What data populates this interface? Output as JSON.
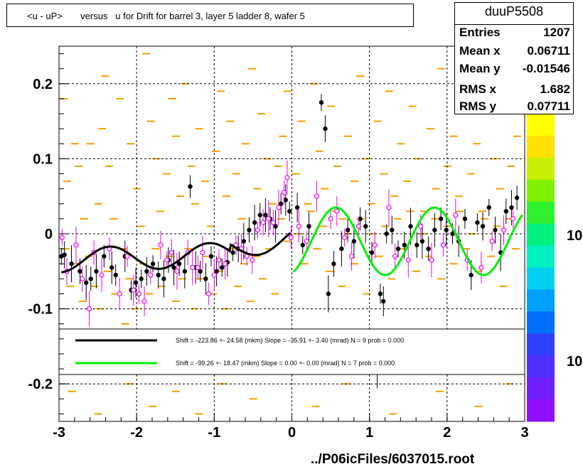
{
  "title": "<u - uP>       versus   u for Drift for barrel 3, layer 5 ladder 8, wafer 5",
  "stats": {
    "name": "duuP5508",
    "rows": [
      {
        "label": "Entries",
        "value": "1207"
      },
      {
        "label": "Mean x",
        "value": "0.06711"
      },
      {
        "label": "Mean y",
        "value": "-0.01546"
      },
      {
        "label": "RMS x",
        "value": "1.682"
      },
      {
        "label": "RMS y",
        "value": "0.07711"
      }
    ]
  },
  "footer": "../P06icFiles/6037015.root",
  "zaxis_labels": [
    "10",
    "10"
  ],
  "legend": [
    {
      "color": "#000000",
      "text": "Shift =  -223.86 +- 24.58 (mkm) Slope =   -35.91 +- 3.40 (mrad)  N = 9 prob = 0.000"
    },
    {
      "color": "#00ee00",
      "text": "Shift =   -99.26 +- 18.47 (mkm) Slope =     0.00 +- 0.00 (mrad)  N = 7 prob = 0.000"
    }
  ],
  "chart_data": {
    "type": "scatter",
    "xlim": [
      -3,
      3
    ],
    "ylim": [
      -0.25,
      0.25
    ],
    "x_ticks": [
      "-3",
      "-2",
      "-1",
      "0",
      "1",
      "2",
      "3"
    ],
    "y_ticks": [
      "0.2",
      "0.1",
      "0",
      "-0.1",
      "-0.2"
    ],
    "y_tick_values": [
      0.2,
      0.1,
      0,
      -0.1,
      -0.2
    ],
    "grid": true,
    "colors": {
      "profile": "#000000",
      "profile_open": "#ee00ee",
      "heat": "#f0a000",
      "fit1": "#000000",
      "fit2": "#00ee00"
    },
    "series": [
      {
        "marker": "filled-circle",
        "x": [
          -2.97,
          -2.93,
          -2.84,
          -2.73,
          -2.65,
          -2.59,
          -2.52,
          -2.42,
          -2.32,
          -2.27,
          -2.15,
          -2.07,
          -2.01,
          -1.94,
          -1.87,
          -1.79,
          -1.72,
          -1.65,
          -1.59,
          -1.52,
          -1.45,
          -1.38,
          -1.31,
          -1.24,
          -1.18,
          -1.11,
          -1.04,
          -0.97,
          -0.9,
          -0.83,
          -0.76,
          -0.69,
          -0.62,
          -0.55,
          -0.48,
          -0.41,
          -0.34,
          -0.28,
          -0.21,
          -0.14,
          -0.08,
          -0.03,
          0.07,
          0.14,
          0.22,
          0.38,
          0.43,
          0.47,
          0.54,
          0.64,
          0.72,
          0.8,
          0.88,
          0.95,
          1.03,
          1.1,
          1.14,
          1.18,
          1.22,
          1.29,
          1.37,
          1.45,
          1.53,
          1.61,
          1.68,
          1.76,
          1.84,
          1.92,
          1.99,
          2.07,
          2.15,
          2.23,
          2.31,
          2.39,
          2.46,
          2.54,
          2.62,
          2.69,
          2.76,
          2.83,
          2.9
        ],
        "y": [
          -0.03,
          -0.028,
          -0.04,
          -0.05,
          -0.065,
          -0.06,
          -0.05,
          -0.03,
          -0.045,
          -0.055,
          -0.03,
          -0.075,
          -0.065,
          -0.06,
          -0.05,
          -0.04,
          -0.055,
          -0.06,
          -0.035,
          -0.045,
          -0.04,
          -0.05,
          0.063,
          -0.045,
          -0.05,
          -0.06,
          -0.03,
          -0.05,
          -0.045,
          -0.038,
          -0.025,
          -0.02,
          -0.01,
          0.005,
          0.015,
          0.025,
          0.025,
          0.02,
          0.01,
          0.04,
          0.045,
          0.03,
          0.035,
          -0.015,
          0.01,
          0.175,
          0.14,
          -0.08,
          -0.04,
          -0.02,
          0.005,
          -0.01,
          0.02,
          0.01,
          -0.025,
          -0.185,
          -0.08,
          -0.09,
          0,
          0.005,
          -0.02,
          -0.015,
          0.01,
          -0.015,
          -0.01,
          -0.02,
          0.005,
          0.02,
          0.005,
          0,
          -0.01,
          0.02,
          -0.055,
          0.015,
          0.01,
          0.035,
          0.005,
          -0.025,
          0.03,
          0.035,
          0.048
        ]
      },
      {
        "marker": "open-circle",
        "x": [
          -2.96,
          -2.9,
          -2.78,
          -2.7,
          -2.61,
          -2.55,
          -2.45,
          -2.35,
          -2.22,
          -2.12,
          -2.04,
          -1.97,
          -1.9,
          -1.82,
          -1.69,
          -1.61,
          -1.55,
          -1.48,
          -1.34,
          -1.28,
          -1.21,
          -1.15,
          -1.07,
          -1.0,
          -0.94,
          -0.86,
          -0.72,
          -0.65,
          -0.58,
          -0.51,
          -0.44,
          -0.37,
          -0.3,
          -0.24,
          -0.17,
          -0.1,
          -0.06,
          -0.01,
          0.09,
          0.19,
          0.32,
          0.5,
          0.58,
          0.68,
          0.77,
          0.86,
          1.07,
          1.25,
          1.33,
          1.5,
          1.66,
          1.8,
          1.95,
          2.11,
          2.26,
          2.44,
          2.58,
          2.73,
          2.85
        ],
        "y": [
          -0.005,
          -0.05,
          -0.015,
          -0.06,
          -0.1,
          -0.025,
          -0.055,
          -0.02,
          -0.08,
          -0.03,
          -0.075,
          -0.08,
          -0.09,
          -0.055,
          -0.015,
          -0.035,
          -0.025,
          -0.05,
          -0.025,
          -0.045,
          -0.045,
          -0.025,
          -0.08,
          -0.055,
          -0.035,
          -0.04,
          -0.015,
          -0.02,
          -0.03,
          -0.035,
          0.005,
          0.015,
          0.02,
          0.015,
          0.035,
          0.055,
          0.075,
          -0.005,
          0.01,
          -0.01,
          0.05,
          0.02,
          0.03,
          -0.005,
          -0.03,
          0.01,
          -0.015,
          0.035,
          -0.03,
          -0.035,
          0.01,
          -0.035,
          -0.015,
          0.025,
          -0.035,
          -0.045,
          -0.01,
          0.005,
          0.02
        ]
      }
    ],
    "heat_cells": [
      [
        -2.94,
        0.18
      ],
      [
        -2.9,
        0.07
      ],
      [
        -2.8,
        0.12
      ],
      [
        -2.75,
        0.09
      ],
      [
        -2.68,
        0.02
      ],
      [
        -2.6,
        0.12
      ],
      [
        -2.5,
        0.04
      ],
      [
        -2.45,
        0.14
      ],
      [
        -2.41,
        0.21
      ],
      [
        -2.36,
        0.09
      ],
      [
        -2.3,
        0.02
      ],
      [
        -2.22,
        0.18
      ],
      [
        -2.15,
        -0.12
      ],
      [
        -2.08,
        0.12
      ],
      [
        -2.0,
        0.06
      ],
      [
        -1.95,
        0.01
      ],
      [
        -1.88,
        0.24
      ],
      [
        -1.82,
        0.15
      ],
      [
        -1.75,
        0.1
      ],
      [
        -1.7,
        0.03
      ],
      [
        -1.62,
        0.08
      ],
      [
        -1.55,
        0.18
      ],
      [
        -1.5,
        0.13
      ],
      [
        -1.44,
        0.05
      ],
      [
        -1.38,
        0.2
      ],
      [
        -1.3,
        0.09
      ],
      [
        -1.25,
        0.04
      ],
      [
        -1.2,
        0.14
      ],
      [
        -1.12,
        0.07
      ],
      [
        -1.05,
        0.01
      ],
      [
        -0.98,
        0.11
      ],
      [
        -0.92,
        0.19
      ],
      [
        -0.85,
        0.05
      ],
      [
        -0.8,
        0.15
      ],
      [
        -0.72,
        0.08
      ],
      [
        -0.65,
        0.02
      ],
      [
        -0.6,
        0.12
      ],
      [
        -0.52,
        0.22
      ],
      [
        -0.45,
        0.06
      ],
      [
        -0.4,
        0.16
      ],
      [
        -0.32,
        0.1
      ],
      [
        -0.25,
        0.04
      ],
      [
        -0.18,
        0.09
      ],
      [
        -0.12,
        0.13
      ],
      [
        -0.06,
        0.19
      ],
      [
        0.05,
        0.08
      ],
      [
        0.12,
        0.15
      ],
      [
        0.2,
        0.04
      ],
      [
        0.28,
        0.2
      ],
      [
        0.35,
        0.11
      ],
      [
        0.42,
        0.06
      ],
      [
        0.5,
        0.17
      ],
      [
        0.58,
        0.09
      ],
      [
        0.65,
        0.02
      ],
      [
        0.72,
        0.13
      ],
      [
        0.8,
        0.07
      ],
      [
        0.88,
        0.21
      ],
      [
        0.95,
        0.1
      ],
      [
        1.02,
        0.04
      ],
      [
        1.1,
        0.15
      ],
      [
        1.18,
        0.08
      ],
      [
        1.25,
        0.19
      ],
      [
        1.32,
        0.05
      ],
      [
        1.4,
        0.12
      ],
      [
        1.48,
        0.07
      ],
      [
        1.55,
        0.17
      ],
      [
        1.62,
        0.1
      ],
      [
        1.7,
        0.03
      ],
      [
        1.78,
        0.14
      ],
      [
        1.85,
        0.06
      ],
      [
        1.92,
        0.22
      ],
      [
        2.0,
        0.09
      ],
      [
        2.08,
        0.13
      ],
      [
        2.15,
        0.05
      ],
      [
        2.22,
        0.18
      ],
      [
        2.3,
        0.08
      ],
      [
        2.38,
        0.12
      ],
      [
        2.45,
        0.03
      ],
      [
        2.52,
        0.16
      ],
      [
        2.6,
        0.1
      ],
      [
        2.68,
        0.06
      ],
      [
        2.75,
        0.2
      ],
      [
        2.82,
        0.09
      ],
      [
        2.9,
        0.13
      ],
      [
        -2.92,
        -0.02
      ],
      [
        -2.86,
        -0.07
      ],
      [
        -2.78,
        -0.04
      ],
      [
        -2.7,
        -0.09
      ],
      [
        -2.62,
        -0.03
      ],
      [
        -2.55,
        -0.07
      ],
      [
        -2.48,
        -0.1
      ],
      [
        -2.38,
        -0.05
      ],
      [
        -2.28,
        -0.08
      ],
      [
        -2.18,
        -0.02
      ],
      [
        -2.1,
        -0.06
      ],
      [
        -2.02,
        -0.1
      ],
      [
        -1.92,
        -0.04
      ],
      [
        -1.84,
        -0.08
      ],
      [
        -1.76,
        -0.02
      ],
      [
        -1.68,
        -0.07
      ],
      [
        -1.58,
        -0.03
      ],
      [
        -1.5,
        -0.09
      ],
      [
        -1.42,
        -0.06
      ],
      [
        -1.34,
        -0.02
      ],
      [
        -1.26,
        -0.1
      ],
      [
        -1.18,
        -0.06
      ],
      [
        -1.1,
        -0.03
      ],
      [
        -1.02,
        -0.08
      ],
      [
        -0.94,
        -0.05
      ],
      [
        -0.86,
        -0.1
      ],
      [
        -0.78,
        -0.02
      ],
      [
        -0.7,
        -0.07
      ],
      [
        -0.62,
        -0.04
      ],
      [
        -0.54,
        -0.09
      ],
      [
        -0.46,
        -0.03
      ],
      [
        -0.38,
        -0.06
      ],
      [
        -0.3,
        -0.02
      ],
      [
        -0.22,
        -0.08
      ],
      [
        -0.14,
        0.02
      ],
      [
        -0.06,
        -0.01
      ],
      [
        0.08,
        0.0
      ],
      [
        0.16,
        -0.04
      ],
      [
        0.24,
        0.03
      ],
      [
        0.32,
        -0.02
      ],
      [
        0.4,
        0.01
      ],
      [
        0.48,
        -0.05
      ],
      [
        0.56,
        0.03
      ],
      [
        0.64,
        -0.07
      ],
      [
        0.72,
        0.0
      ],
      [
        0.8,
        -0.04
      ],
      [
        0.88,
        0.02
      ],
      [
        0.96,
        -0.08
      ],
      [
        1.04,
        0.0
      ],
      [
        1.12,
        -0.03
      ],
      [
        1.2,
        0.01
      ],
      [
        1.28,
        -0.06
      ],
      [
        1.36,
        0.02
      ],
      [
        1.44,
        -0.02
      ],
      [
        1.52,
        0.03
      ],
      [
        1.6,
        -0.05
      ],
      [
        1.68,
        0.0
      ],
      [
        1.76,
        -0.03
      ],
      [
        1.84,
        0.02
      ],
      [
        1.92,
        -0.06
      ],
      [
        2.0,
        0.01
      ],
      [
        2.08,
        -0.04
      ],
      [
        2.16,
        0.03
      ],
      [
        2.24,
        -0.02
      ],
      [
        2.32,
        0.0
      ],
      [
        2.4,
        -0.05
      ],
      [
        2.48,
        0.02
      ],
      [
        2.56,
        -0.03
      ],
      [
        2.64,
        0.01
      ],
      [
        2.72,
        -0.07
      ],
      [
        2.8,
        0.02
      ],
      [
        2.88,
        -0.02
      ],
      [
        -2.84,
        -0.21
      ],
      [
        -2.5,
        -0.24
      ],
      [
        -2.1,
        -0.2
      ],
      [
        -1.8,
        -0.23
      ],
      [
        -1.5,
        -0.21
      ],
      [
        -1.2,
        -0.24
      ],
      [
        -0.9,
        -0.2
      ],
      [
        -0.5,
        -0.22
      ],
      [
        0.3,
        -0.23
      ],
      [
        0.7,
        -0.2
      ],
      [
        1.3,
        -0.24
      ],
      [
        1.9,
        -0.21
      ],
      [
        2.4,
        -0.23
      ],
      [
        2.8,
        -0.2
      ]
    ],
    "fits": [
      {
        "name": "fit1",
        "color": "#000000",
        "x_range": [
          -2.97,
          -0.02
        ]
      },
      {
        "name": "fit2",
        "color": "#00ee00",
        "x_range": [
          0.02,
          2.97
        ]
      }
    ]
  }
}
